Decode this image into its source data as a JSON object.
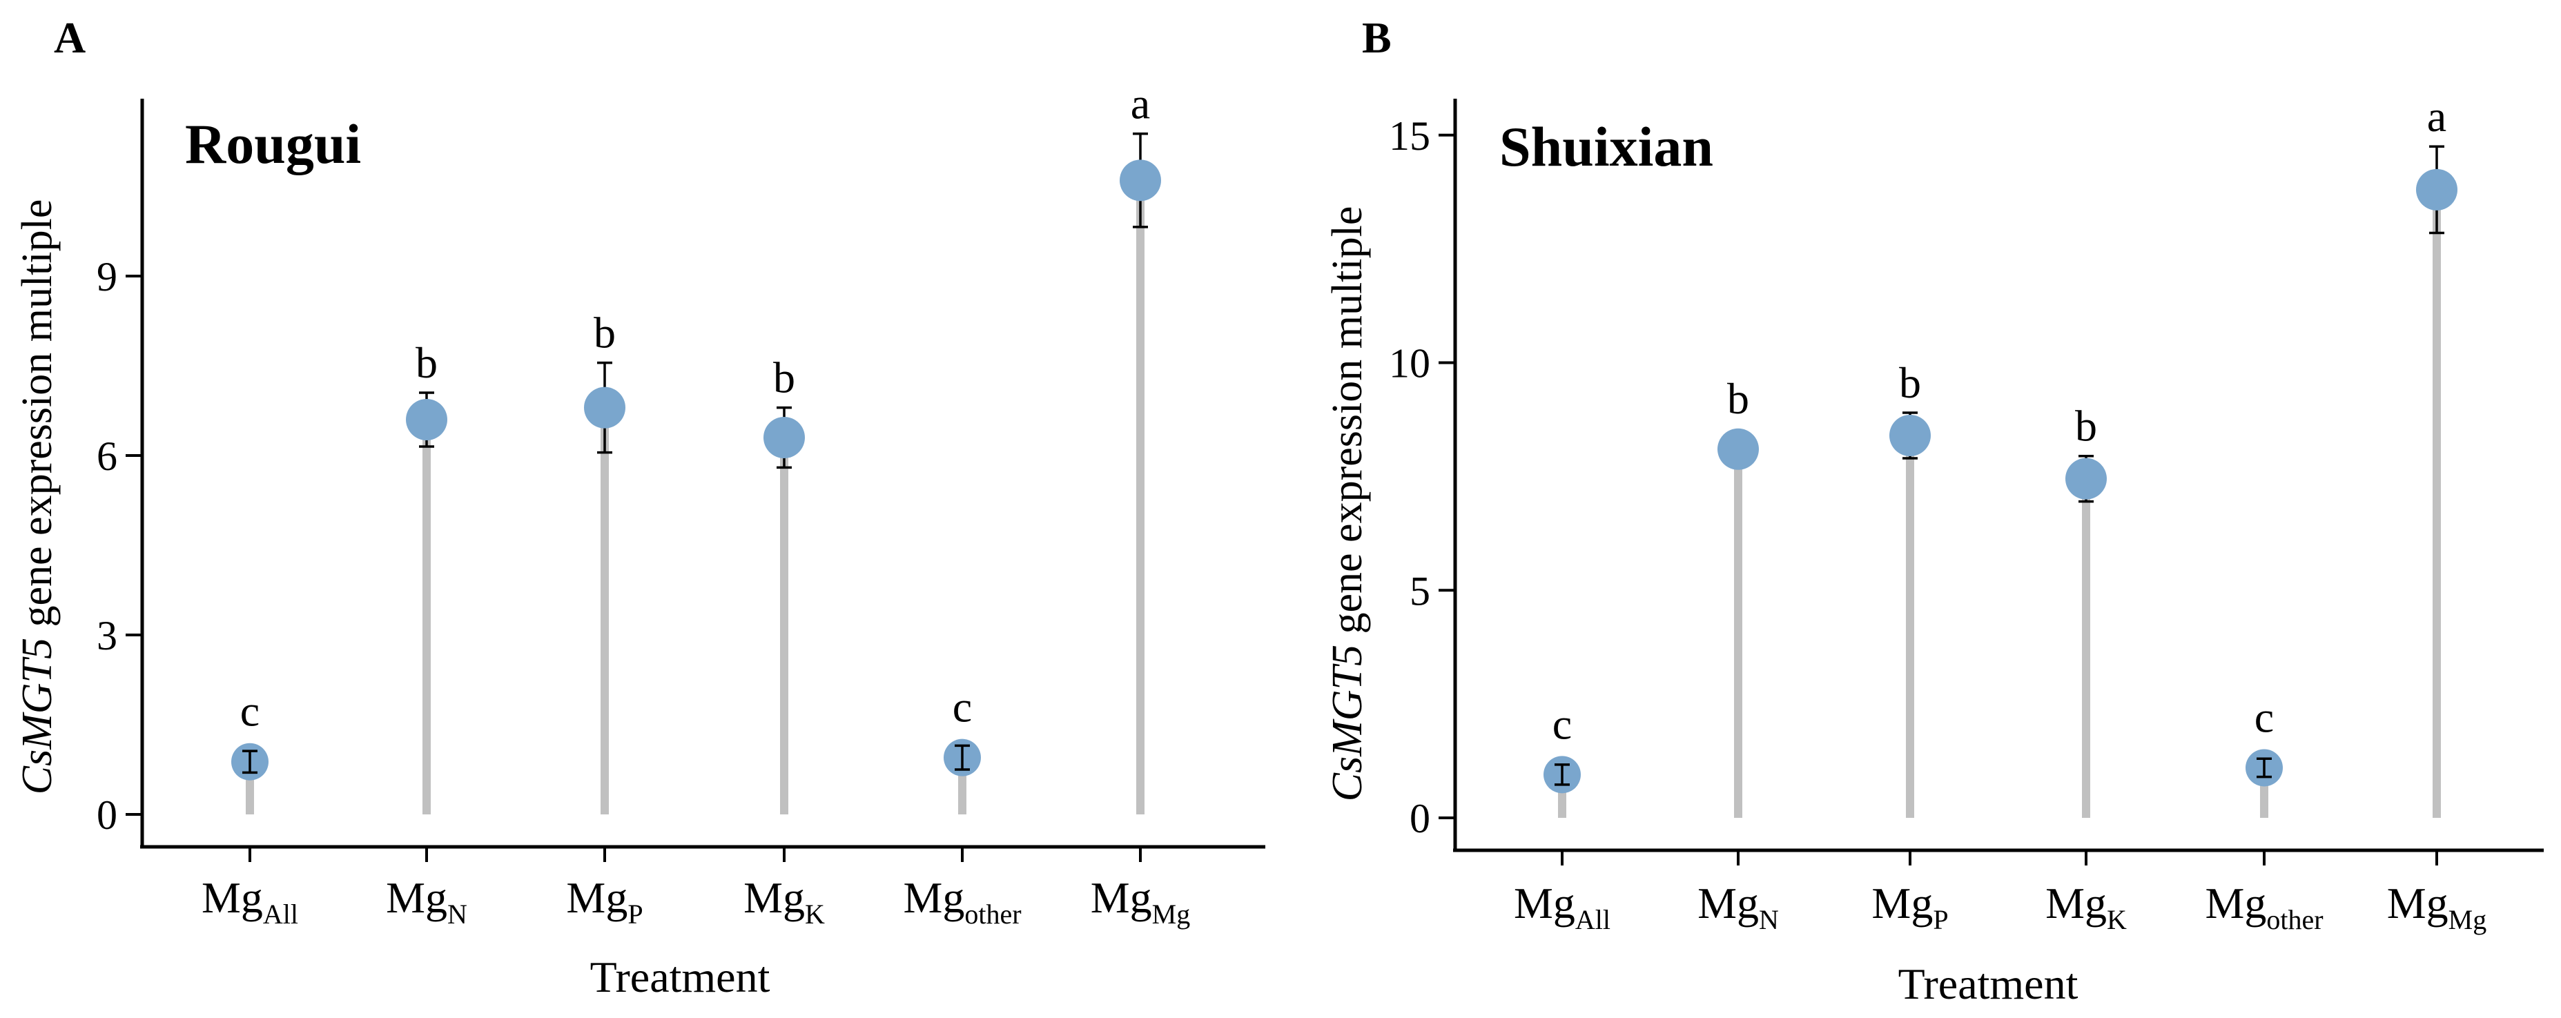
{
  "chart_data": [
    {
      "type": "lollipop",
      "panel_label": "A",
      "title": "Rougui",
      "xlabel": "Treatment",
      "ylabel": {
        "italic": "CsMGT5",
        "rest": " gene expression multiple"
      },
      "ylim": [
        0,
        12
      ],
      "yticks": [
        0,
        3,
        6,
        9
      ],
      "categories": [
        {
          "base": "Mg",
          "sub": "All"
        },
        {
          "base": "Mg",
          "sub": "N"
        },
        {
          "base": "Mg",
          "sub": "P"
        },
        {
          "base": "Mg",
          "sub": "K"
        },
        {
          "base": "Mg",
          "sub": "other"
        },
        {
          "base": "Mg",
          "sub": "Mg"
        }
      ],
      "values": [
        0.88,
        6.6,
        6.8,
        6.3,
        0.95,
        10.6
      ],
      "errors": [
        0.18,
        0.45,
        0.75,
        0.5,
        0.2,
        0.78
      ],
      "letters": [
        "c",
        "b",
        "b",
        "b",
        "c",
        "a"
      ]
    },
    {
      "type": "lollipop",
      "panel_label": "B",
      "title": "Shuixian",
      "xlabel": "Treatment",
      "ylabel": {
        "italic": "CsMGT5",
        "rest": " gene expression multiple"
      },
      "ylim": [
        0,
        15.8
      ],
      "yticks": [
        0,
        5,
        10,
        15
      ],
      "categories": [
        {
          "base": "Mg",
          "sub": "All"
        },
        {
          "base": "Mg",
          "sub": "N"
        },
        {
          "base": "Mg",
          "sub": "P"
        },
        {
          "base": "Mg",
          "sub": "K"
        },
        {
          "base": "Mg",
          "sub": "other"
        },
        {
          "base": "Mg",
          "sub": "Mg"
        }
      ],
      "values": [
        0.95,
        8.1,
        8.4,
        7.45,
        1.1,
        13.8
      ],
      "errors": [
        0.22,
        0.28,
        0.5,
        0.5,
        0.2,
        0.95
      ],
      "letters": [
        "c",
        "b",
        "b",
        "b",
        "c",
        "a"
      ]
    }
  ]
}
